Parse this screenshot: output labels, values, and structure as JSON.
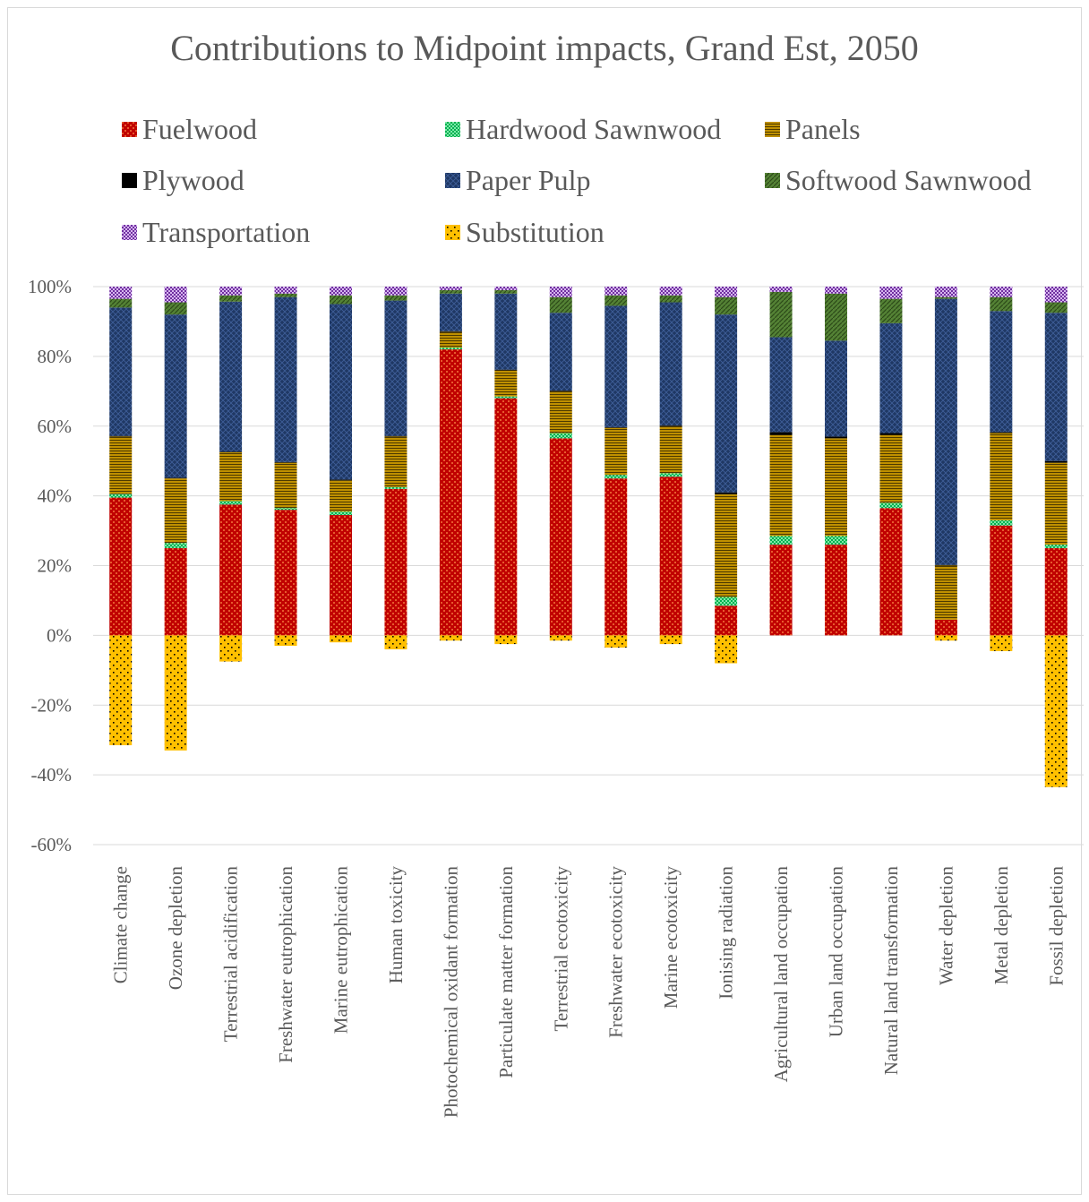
{
  "chart_data": {
    "type": "bar",
    "stacked": true,
    "title": "Contributions to Midpoint impacts, Grand Est, 2050",
    "xlabel": "",
    "ylabel": "",
    "ylim": [
      -60,
      100
    ],
    "yticks": [
      "100%",
      "80%",
      "60%",
      "40%",
      "20%",
      "0%",
      "-20%",
      "-40%",
      "-60%"
    ],
    "ytick_values": [
      100,
      80,
      60,
      40,
      20,
      0,
      -20,
      -40,
      -60
    ],
    "grid": true,
    "legend_position": "top",
    "categories": [
      "Climate change",
      "Ozone depletion",
      "Terrestrial acidification",
      "Freshwater eutrophication",
      "Marine eutrophication",
      "Human toxicity",
      "Photochemical oxidant formation",
      "Particulate matter formation",
      "Terrestrial ecotoxicity",
      "Freshwater ecotoxicity",
      "Marine ecotoxicity",
      "Ionising radiation",
      "Agricultural land occupation",
      "Urban land occupation",
      "Natural land transformation",
      "Water depletion",
      "Metal depletion",
      "Fossil depletion"
    ],
    "series": [
      {
        "name": "Fuelwood",
        "color": "#c00000",
        "pattern": "fuel",
        "values": [
          39.5,
          25,
          37.5,
          36,
          34.5,
          42,
          82,
          68,
          56.5,
          45,
          45.5,
          8.5,
          26,
          26,
          36.5,
          4.5,
          31.5,
          25
        ]
      },
      {
        "name": "Hardwood Sawnwood",
        "color": "#00b050",
        "pattern": "hard",
        "values": [
          1,
          1.5,
          1,
          0.5,
          1,
          0.5,
          0.5,
          0.5,
          1.5,
          1,
          1,
          2.5,
          2.5,
          2.5,
          1.5,
          0,
          1.5,
          1
        ]
      },
      {
        "name": "Panels",
        "color": "#bf9000",
        "pattern": "panels",
        "values": [
          16.5,
          18.5,
          14,
          13,
          9,
          14.5,
          4.5,
          7.5,
          12,
          13.5,
          13.5,
          29.5,
          29,
          28,
          19.5,
          15.5,
          25,
          23.5
        ]
      },
      {
        "name": "Plywood",
        "color": "#000000",
        "pattern": "solid",
        "values": [
          0.2,
          0.2,
          0.2,
          0.2,
          0.2,
          0.2,
          0.2,
          0.2,
          0.2,
          0.2,
          0.2,
          0.5,
          0.8,
          0.5,
          0.5,
          0.2,
          0.3,
          0.5
        ]
      },
      {
        "name": "Paper Pulp",
        "color": "#1f3864",
        "pattern": "pulp",
        "values": [
          36.8,
          46.8,
          43,
          47.3,
          50.3,
          38.8,
          10.8,
          21.8,
          22.3,
          34.8,
          35.3,
          51,
          27.2,
          27.5,
          31.5,
          76.3,
          34.7,
          42.5
        ]
      },
      {
        "name": "Softwood Sawnwood",
        "color": "#548235",
        "pattern": "soft",
        "values": [
          2.5,
          3.5,
          1.8,
          1,
          2.5,
          1.5,
          1,
          1,
          4.5,
          3,
          2,
          5,
          13,
          13.5,
          7,
          0.5,
          4,
          3
        ]
      },
      {
        "name": "Transportation",
        "color": "#7030a0",
        "pattern": "trans",
        "values": [
          3.5,
          4.5,
          2.5,
          2,
          2.5,
          2.5,
          1,
          1,
          3,
          2.5,
          2.5,
          3,
          1.5,
          2,
          3.5,
          3,
          3,
          4.5
        ]
      },
      {
        "name": "Substitution",
        "color": "#ffc000",
        "pattern": "subst",
        "values": [
          -31.5,
          -33,
          -7.5,
          -3,
          -2,
          -4,
          -1.5,
          -2.5,
          -1.5,
          -3.5,
          -2.5,
          -8,
          0,
          0,
          0,
          -1.5,
          -4.5,
          -43.5
        ]
      }
    ]
  }
}
